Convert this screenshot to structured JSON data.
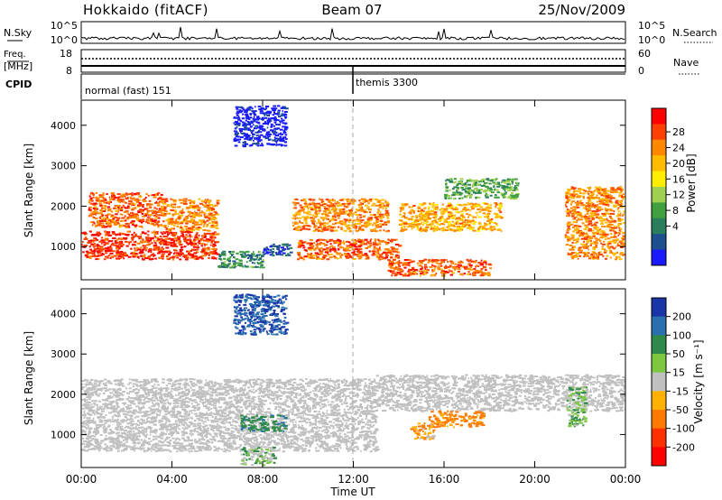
{
  "header": {
    "site": "Hokkaido (fitACF)",
    "beam": "Beam 07",
    "date": "25/Nov/2009"
  },
  "summary_panels": {
    "nsky_label": "N.Sky",
    "nsky_ticks": [
      "10^5",
      "10^0"
    ],
    "nsearch_label": "N.Search",
    "nsearch_ticks": [
      "10^5",
      "10^0"
    ],
    "freq_label_line1": "Freq.",
    "freq_label_line2": "[MHz]",
    "freq_ticks": [
      "18",
      "8"
    ],
    "nave_label": "Nave",
    "nave_ticks": [
      "60",
      "0"
    ],
    "cpid_label": "CPID",
    "cpid_segments": [
      {
        "label": "normal (fast) 151",
        "start_hour": 0
      },
      {
        "label": "themis 3300",
        "start_hour": 12
      }
    ]
  },
  "axes": {
    "xlabel": "Time UT",
    "x_ticks": [
      "00:00",
      "04:00",
      "08:00",
      "12:00",
      "16:00",
      "20:00",
      "00:00"
    ],
    "x_range_hours": [
      0,
      24
    ],
    "ylabel_power": "Slant Range [km]",
    "ylabel_velocity": "Slant Range [km]",
    "y_ticks": [
      "4000",
      "3000",
      "2000",
      "1000"
    ],
    "y_range_km": [
      180,
      4620
    ]
  },
  "colorbars": {
    "power": {
      "label": "Power [dB]",
      "ticks": [
        "28",
        "24",
        "20",
        "16",
        "12",
        "8",
        "4"
      ],
      "colors": [
        "#ff0000",
        "#ff4000",
        "#ff8800",
        "#ffbb00",
        "#ffee00",
        "#a0d050",
        "#40a040",
        "#2a7e5c",
        "#1e5090",
        "#1a1aff"
      ]
    },
    "velocity": {
      "label": "Velocity [m s⁻¹]",
      "ticks": [
        "200",
        "100",
        "50",
        "15",
        "-15",
        "-50",
        "-100",
        "-200"
      ],
      "colors": [
        "#1a35a8",
        "#2a70b0",
        "#2f8a4a",
        "#7dc840",
        "#c0c0c0",
        "#ffb000",
        "#ff7a00",
        "#ff3000",
        "#ff0000"
      ]
    }
  },
  "colors": {
    "axis": "#000000",
    "dashed_marker": "#a0a0a0",
    "ground_scatter": "#c0c0c0"
  },
  "chart_data": {
    "type": "heatmap",
    "description_units": "x = hours UT, y = slant range km",
    "power_regions": [
      {
        "x": [
          0.0,
          6.0
        ],
        "y": [
          700,
          1400
        ],
        "value_db": 30
      },
      {
        "x": [
          0.3,
          3.5
        ],
        "y": [
          1500,
          2350
        ],
        "value_db": 28
      },
      {
        "x": [
          3.5,
          6.0
        ],
        "y": [
          1400,
          2200
        ],
        "value_db": 26
      },
      {
        "x": [
          6.0,
          8.0
        ],
        "y": [
          500,
          900
        ],
        "value_db": 12
      },
      {
        "x": [
          8.0,
          9.2
        ],
        "y": [
          800,
          1100
        ],
        "value_db": 8
      },
      {
        "x": [
          9.3,
          13.5
        ],
        "y": [
          1400,
          2200
        ],
        "value_db": 26
      },
      {
        "x": [
          9.5,
          14.0
        ],
        "y": [
          700,
          1200
        ],
        "value_db": 28
      },
      {
        "x": [
          14.0,
          18.5
        ],
        "y": [
          1400,
          2100
        ],
        "value_db": 24
      },
      {
        "x": [
          16.0,
          19.2
        ],
        "y": [
          2200,
          2700
        ],
        "value_db": 14
      },
      {
        "x": [
          13.5,
          18.0
        ],
        "y": [
          300,
          700
        ],
        "value_db": 28
      },
      {
        "x": [
          21.3,
          23.9
        ],
        "y": [
          700,
          2500
        ],
        "value_db": 26
      },
      {
        "x": [
          6.7,
          9.0
        ],
        "y": [
          3500,
          4500
        ],
        "value_db": 4
      }
    ],
    "velocity_regions": [
      {
        "x": [
          0.0,
          13.0
        ],
        "y": [
          600,
          2400
        ],
        "value_ms": 0,
        "ground_scatter": true
      },
      {
        "x": [
          13.0,
          24.0
        ],
        "y": [
          1600,
          2500
        ],
        "value_ms": 0,
        "ground_scatter": true
      },
      {
        "x": [
          7.0,
          9.0
        ],
        "y": [
          1100,
          1500
        ],
        "value_ms": 60
      },
      {
        "x": [
          7.0,
          8.5
        ],
        "y": [
          250,
          700
        ],
        "value_ms": 20
      },
      {
        "x": [
          15.3,
          17.7
        ],
        "y": [
          1200,
          1600
        ],
        "value_ms": -40
      },
      {
        "x": [
          14.5,
          15.5
        ],
        "y": [
          900,
          1300
        ],
        "value_ms": -30
      },
      {
        "x": [
          21.4,
          22.2
        ],
        "y": [
          1200,
          2200
        ],
        "value_ms": 30
      },
      {
        "x": [
          6.7,
          9.0
        ],
        "y": [
          3500,
          4500
        ],
        "value_ms": 150
      }
    ]
  }
}
